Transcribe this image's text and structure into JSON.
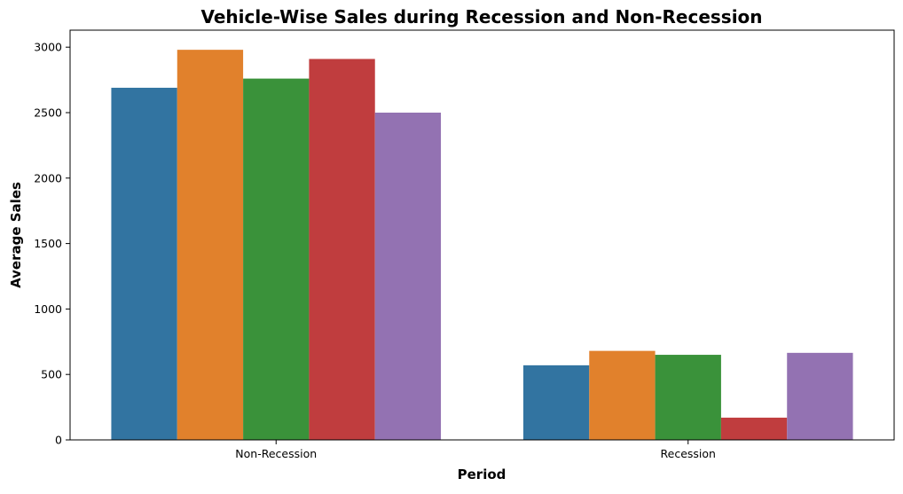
{
  "chart_data": {
    "type": "bar",
    "title": "Vehicle-Wise Sales during Recession and Non-Recession",
    "xlabel": "Period",
    "ylabel": "Average Sales",
    "categories": [
      "Non-Recession",
      "Recession"
    ],
    "series": [
      {
        "color": "#3274a1",
        "values": [
          2690,
          570
        ]
      },
      {
        "color": "#e1812c",
        "values": [
          2980,
          680
        ]
      },
      {
        "color": "#3a923a",
        "values": [
          2760,
          650
        ]
      },
      {
        "color": "#c03d3e",
        "values": [
          2910,
          170
        ]
      },
      {
        "color": "#9372b2",
        "values": [
          2500,
          665
        ]
      }
    ],
    "ylim": [
      0,
      3130
    ],
    "yticks": [
      0,
      500,
      1000,
      1500,
      2000,
      2500,
      3000
    ],
    "grid": false,
    "legend": "none"
  }
}
